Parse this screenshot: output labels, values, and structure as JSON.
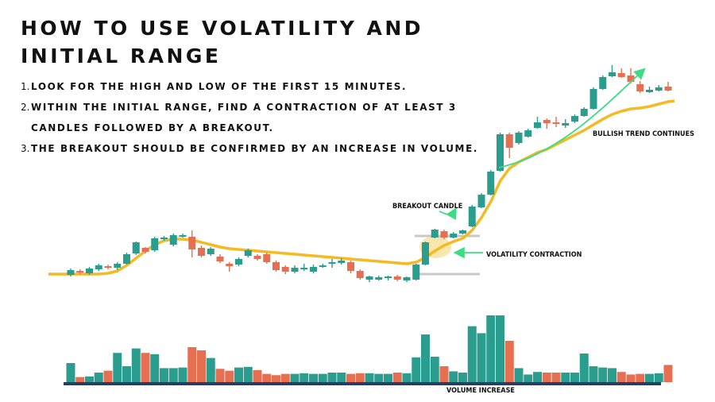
{
  "title": "HOW TO USE VOLATILITY AND INITIAL RANGE",
  "steps": [
    {
      "num": "1.",
      "text": "LOOK FOR THE HIGH AND LOW OF THE FIRST 15 MINUTES.",
      "cont": ""
    },
    {
      "num": "2.",
      "text": "WITHIN THE INITIAL RANGE, FIND A CONTRACTION OF AT LEAST 3",
      "cont": "CANDLES FOLLOWED BY A BREAKOUT."
    },
    {
      "num": "3.",
      "text": "THE BREAKOUT SHOULD BE CONFIRMED BY AN INCREASE IN VOLUME.",
      "cont": ""
    }
  ],
  "annotations": {
    "breakout_candle": "BREAKOUT CANDLE",
    "volatility_contraction": "VOLATILITY CONTRACTION",
    "bullish_trend": "BULLISH TREND CONTINUES",
    "volume_increase": "VOLUME INCREASE"
  },
  "colors": {
    "bullish": "#2a9d8f",
    "bearish": "#e76f51",
    "moving_average": "#f4b923",
    "arrows": "#3ddc84",
    "range_lines": "#c8c8c8",
    "baseline": "#2b3a67",
    "highlight": "#f6e3a0"
  },
  "chart_data": {
    "type": "candlestick",
    "candles": [
      {
        "o": 66,
        "c": 72,
        "h": 74,
        "l": 64
      },
      {
        "o": 71,
        "c": 69,
        "h": 73,
        "l": 67
      },
      {
        "o": 68,
        "c": 74,
        "h": 76,
        "l": 66
      },
      {
        "o": 73,
        "c": 78,
        "h": 80,
        "l": 71
      },
      {
        "o": 77,
        "c": 75,
        "h": 79,
        "l": 73
      },
      {
        "o": 75,
        "c": 80,
        "h": 82,
        "l": 72
      },
      {
        "o": 80,
        "c": 92,
        "h": 94,
        "l": 79
      },
      {
        "o": 93,
        "c": 107,
        "h": 108,
        "l": 91
      },
      {
        "o": 100,
        "c": 95,
        "h": 101,
        "l": 93
      },
      {
        "o": 97,
        "c": 112,
        "h": 114,
        "l": 95
      },
      {
        "o": 111,
        "c": 113,
        "h": 115,
        "l": 109
      },
      {
        "o": 104,
        "c": 116,
        "h": 118,
        "l": 102
      },
      {
        "o": 115,
        "c": 116,
        "h": 118,
        "l": 113
      },
      {
        "o": 114,
        "c": 98,
        "h": 122,
        "l": 88
      },
      {
        "o": 100,
        "c": 90,
        "h": 103,
        "l": 88
      },
      {
        "o": 92,
        "c": 99,
        "h": 101,
        "l": 90
      },
      {
        "o": 89,
        "c": 83,
        "h": 92,
        "l": 81
      },
      {
        "o": 80,
        "c": 77,
        "h": 82,
        "l": 70
      },
      {
        "o": 79,
        "c": 86,
        "h": 88,
        "l": 77
      },
      {
        "o": 90,
        "c": 97,
        "h": 99,
        "l": 88
      },
      {
        "o": 90,
        "c": 86,
        "h": 92,
        "l": 84
      },
      {
        "o": 92,
        "c": 82,
        "h": 94,
        "l": 80
      },
      {
        "o": 82,
        "c": 72,
        "h": 84,
        "l": 70
      },
      {
        "o": 76,
        "c": 70,
        "h": 78,
        "l": 67
      },
      {
        "o": 70,
        "c": 75,
        "h": 78,
        "l": 68
      },
      {
        "o": 74,
        "c": 75,
        "h": 80,
        "l": 71
      },
      {
        "o": 70,
        "c": 76,
        "h": 79,
        "l": 68
      },
      {
        "o": 77,
        "c": 78,
        "h": 80,
        "l": 75
      },
      {
        "o": 80,
        "c": 82,
        "h": 86,
        "l": 75
      },
      {
        "o": 81,
        "c": 84,
        "h": 87,
        "l": 79
      },
      {
        "o": 82,
        "c": 71,
        "h": 84,
        "l": 68
      },
      {
        "o": 71,
        "c": 62,
        "h": 73,
        "l": 60
      },
      {
        "o": 60,
        "c": 64,
        "h": 65,
        "l": 57
      },
      {
        "o": 60,
        "c": 63,
        "h": 65,
        "l": 59
      },
      {
        "o": 63,
        "c": 64,
        "h": 65,
        "l": 59
      },
      {
        "o": 64,
        "c": 60,
        "h": 66,
        "l": 58
      },
      {
        "o": 59,
        "c": 63,
        "h": 64,
        "l": 57
      },
      {
        "o": 60,
        "c": 79,
        "h": 80,
        "l": 59
      },
      {
        "o": 79,
        "c": 107,
        "h": 108,
        "l": 78
      },
      {
        "o": 113,
        "c": 123,
        "h": 124,
        "l": 112
      },
      {
        "o": 121,
        "c": 113,
        "h": 123,
        "l": 111
      },
      {
        "o": 113,
        "c": 118,
        "h": 120,
        "l": 112
      },
      {
        "o": 118,
        "c": 122,
        "h": 123,
        "l": 117
      },
      {
        "o": 127,
        "c": 152,
        "h": 154,
        "l": 126
      },
      {
        "o": 151,
        "c": 167,
        "h": 169,
        "l": 150
      },
      {
        "o": 167,
        "c": 196,
        "h": 198,
        "l": 166
      },
      {
        "o": 197,
        "c": 243,
        "h": 245,
        "l": 196
      },
      {
        "o": 243,
        "c": 226,
        "h": 245,
        "l": 213
      },
      {
        "o": 232,
        "c": 245,
        "h": 247,
        "l": 230
      },
      {
        "o": 240,
        "c": 248,
        "h": 250,
        "l": 239
      },
      {
        "o": 251,
        "c": 258,
        "h": 265,
        "l": 250
      },
      {
        "o": 261,
        "c": 257,
        "h": 263,
        "l": 250
      },
      {
        "o": 258,
        "c": 256,
        "h": 265,
        "l": 252
      },
      {
        "o": 254,
        "c": 257,
        "h": 262,
        "l": 251
      },
      {
        "o": 259,
        "c": 266,
        "h": 268,
        "l": 257
      },
      {
        "o": 266,
        "c": 275,
        "h": 277,
        "l": 265
      },
      {
        "o": 275,
        "c": 300,
        "h": 302,
        "l": 274
      },
      {
        "o": 300,
        "c": 315,
        "h": 317,
        "l": 299
      },
      {
        "o": 316,
        "c": 321,
        "h": 330,
        "l": 315
      },
      {
        "o": 320,
        "c": 315,
        "h": 326,
        "l": 314
      },
      {
        "o": 317,
        "c": 309,
        "h": 326,
        "l": 307
      },
      {
        "o": 306,
        "c": 297,
        "h": 310,
        "l": 295
      },
      {
        "o": 296,
        "c": 299,
        "h": 303,
        "l": 295
      },
      {
        "o": 298,
        "c": 302,
        "h": 305,
        "l": 297
      },
      {
        "o": 303,
        "c": 298,
        "h": 309,
        "l": 297
      }
    ],
    "moving_average": [
      67,
      67,
      67,
      67,
      68,
      71,
      78,
      87,
      96,
      104,
      109,
      111,
      111,
      110,
      107,
      104,
      101,
      99,
      98,
      97,
      96,
      95,
      94,
      93,
      92,
      91,
      90,
      89,
      88,
      87,
      86,
      85,
      84,
      83,
      82,
      81,
      80,
      82,
      88,
      96,
      103,
      108,
      112,
      122,
      138,
      158,
      184,
      200,
      208,
      214,
      220,
      224,
      230,
      236,
      242,
      248,
      255,
      262,
      268,
      272,
      275,
      276,
      278,
      281,
      284
    ],
    "volume": [
      30,
      8,
      9,
      15,
      18,
      46,
      25,
      53,
      46,
      44,
      22,
      22,
      23,
      55,
      50,
      38,
      21,
      18,
      23,
      24,
      19,
      13,
      11,
      13,
      13,
      14,
      13,
      13,
      15,
      15,
      13,
      14,
      14,
      13,
      13,
      15,
      14,
      39,
      75,
      40,
      25,
      17,
      15,
      88,
      77,
      105,
      105,
      65,
      22,
      12,
      16,
      15,
      15,
      15,
      15,
      45,
      25,
      23,
      22,
      16,
      12,
      13,
      13,
      14,
      27
    ],
    "initial_range": {
      "start": 39,
      "end": 42,
      "high": 126,
      "low": 98
    }
  }
}
